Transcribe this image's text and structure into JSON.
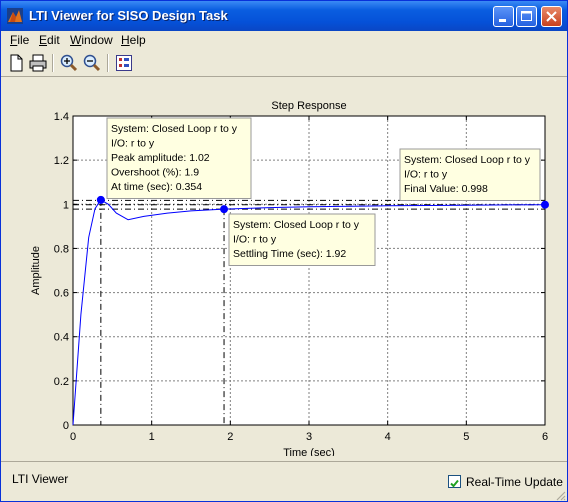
{
  "window": {
    "title": "LTI Viewer for SISO Design Task"
  },
  "menubar": {
    "items": [
      {
        "label": "File",
        "accel": "F",
        "rest": "ile"
      },
      {
        "label": "Edit",
        "accel": "E",
        "rest": "dit"
      },
      {
        "label": "Window",
        "accel": "W",
        "rest": "indow"
      },
      {
        "label": "Help",
        "accel": "H",
        "rest": "elp"
      }
    ]
  },
  "toolbar": {
    "icons": [
      "new-document-icon",
      "print-icon",
      "zoom-in-icon",
      "zoom-out-icon",
      "grid-toggle-icon"
    ]
  },
  "chart_data": {
    "type": "line",
    "title": "Step Response",
    "xlabel": "Time (sec)",
    "ylabel": "Amplitude",
    "xlim": [
      0,
      6
    ],
    "ylim": [
      0,
      1.4
    ],
    "xticks": [
      0,
      1,
      2,
      3,
      4,
      5,
      6
    ],
    "yticks": [
      0,
      0.2,
      0.4,
      0.6,
      0.8,
      1,
      1.2,
      1.4
    ],
    "grid": true,
    "series": [
      {
        "color": "#0000ff",
        "x": [
          0,
          0.1,
          0.2,
          0.28,
          0.354,
          0.45,
          0.55,
          0.7,
          0.9,
          1.2,
          1.5,
          1.92,
          2.5,
          3,
          4,
          5,
          6
        ],
        "y": [
          0,
          0.5,
          0.85,
          0.98,
          1.02,
          1.0,
          0.96,
          0.93,
          0.945,
          0.96,
          0.97,
          0.978,
          0.985,
          0.989,
          0.993,
          0.996,
          0.998
        ]
      }
    ],
    "reference_lines": {
      "final_value": 0.998,
      "settling_band": [
        0.978,
        1.018
      ]
    },
    "markers": [
      {
        "x": 0.354,
        "y": 1.02
      },
      {
        "x": 1.92,
        "y": 0.978
      },
      {
        "x": 6,
        "y": 0.998
      }
    ],
    "datatips": [
      {
        "lines": [
          "System: Closed Loop r to y",
          "I/O: r to y",
          "Peak amplitude: 1.02",
          "Overshoot (%): 1.9",
          "At time (sec): 0.354"
        ]
      },
      {
        "lines": [
          "System: Closed Loop r to y",
          "I/O: r to y",
          "Settling Time (sec): 1.92"
        ]
      },
      {
        "lines": [
          "System: Closed Loop r to y",
          "I/O: r to y",
          "Final Value: 0.998"
        ]
      }
    ]
  },
  "status": {
    "text": "LTI Viewer",
    "realtime_label": "Real-Time Update",
    "realtime_checked": true
  }
}
